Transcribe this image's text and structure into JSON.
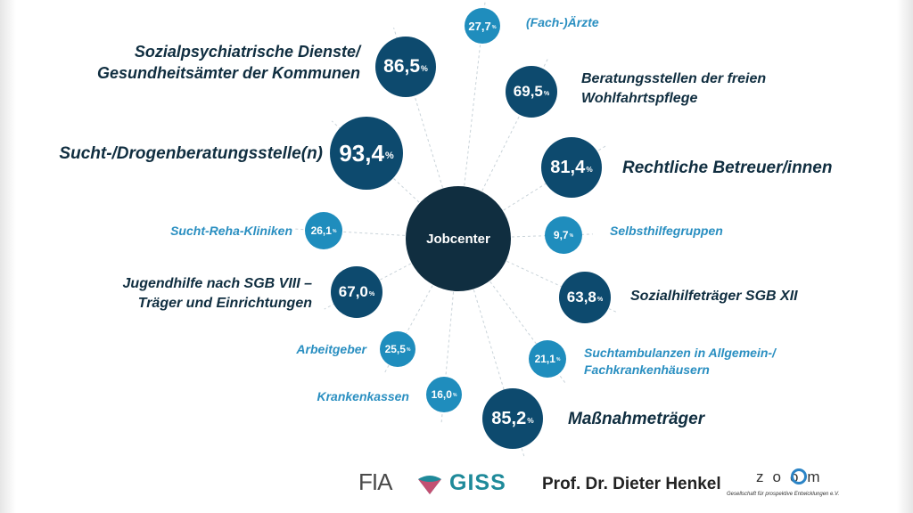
{
  "center": {
    "label": "Jobcenter"
  },
  "nodes": [
    {
      "id": "aerzte",
      "value": "27,7",
      "unit": "%",
      "label": [
        "(Fach-)Ärzte"
      ],
      "style": "light"
    },
    {
      "id": "sozialpsychiatrie",
      "value": "86,5",
      "unit": "%",
      "label": [
        "Sozialpsychiatrische Dienste/",
        "Gesundheitsämter der Kommunen"
      ],
      "style": "dark"
    },
    {
      "id": "beratungsstellen",
      "value": "69,5",
      "unit": "%",
      "label": [
        "Beratungsstellen der freien",
        "Wohlfahrtspflege"
      ],
      "style": "dark"
    },
    {
      "id": "sucht-drogen",
      "value": "93,4",
      "unit": "%",
      "label": [
        "Sucht-/Drogenberatungsstelle(n)"
      ],
      "style": "dark"
    },
    {
      "id": "betreuer",
      "value": "81,4",
      "unit": "%",
      "label": [
        "Rechtliche Betreuer/innen"
      ],
      "style": "dark"
    },
    {
      "id": "reha",
      "value": "26,1",
      "unit": "%",
      "label": [
        "Sucht-Reha-Kliniken"
      ],
      "style": "light"
    },
    {
      "id": "selbsthilfe",
      "value": "9,7",
      "unit": "%",
      "label": [
        "Selbsthilfegruppen"
      ],
      "style": "light"
    },
    {
      "id": "jugendhilfe",
      "value": "67,0",
      "unit": "%",
      "label": [
        "Jugendhilfe nach SGB VIII –",
        "Träger und Einrichtungen"
      ],
      "style": "dark"
    },
    {
      "id": "sozialhilfe",
      "value": "63,8",
      "unit": "%",
      "label": [
        "Sozialhilfeträger SGB XII"
      ],
      "style": "dark"
    },
    {
      "id": "arbeitgeber",
      "value": "25,5",
      "unit": "%",
      "label": [
        "Arbeitgeber"
      ],
      "style": "light"
    },
    {
      "id": "suchtambulanzen",
      "value": "21,1",
      "unit": "%",
      "label": [
        "Suchtambulanzen in Allgemein-/",
        "Fachkrankenhäusern"
      ],
      "style": "light"
    },
    {
      "id": "krankenkassen",
      "value": "16,0",
      "unit": "%",
      "label": [
        "Krankenkassen"
      ],
      "style": "light"
    },
    {
      "id": "massnahmetraeger",
      "value": "85,2",
      "unit": "%",
      "label": [
        "Maßnahmeträger"
      ],
      "style": "dark"
    }
  ],
  "footer": {
    "fia": "FIA",
    "giss": "GISS",
    "author": "Prof. Dr. Dieter Henkel",
    "zoom": "zoom",
    "zoom_tagline": "Gesellschaft für prospektive Entwicklungen e.V."
  },
  "colors": {
    "hub": "#102e40",
    "node_dark": "#0d4a6e",
    "node_light": "#1f8dbd",
    "spoke": "#c9d3d9"
  }
}
